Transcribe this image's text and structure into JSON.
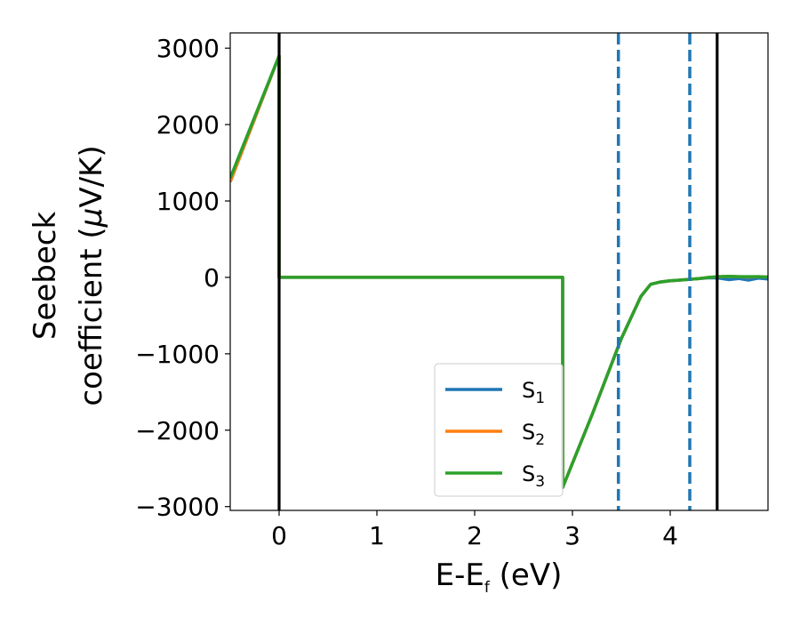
{
  "chart_data": {
    "type": "line",
    "xlabel": {
      "base": "E-E",
      "sub": "f",
      "tail": " (eV)"
    },
    "ylabel": {
      "line1": "Seebeck",
      "line2_text": "coefficient  (",
      "line2_mu": "μ",
      "line2_tail": "V/K)"
    },
    "xlim": [
      -0.5,
      5.0
    ],
    "ylim": [
      -3050,
      3200
    ],
    "xticks": [
      {
        "value": 0,
        "label": "0"
      },
      {
        "value": 1,
        "label": "1"
      },
      {
        "value": 2,
        "label": "2"
      },
      {
        "value": 3,
        "label": "3"
      },
      {
        "value": 4,
        "label": "4"
      }
    ],
    "yticks": [
      {
        "value": 3000,
        "label": "3000"
      },
      {
        "value": 2000,
        "label": "2000"
      },
      {
        "value": 1000,
        "label": "1000"
      },
      {
        "value": 0,
        "label": "0"
      },
      {
        "value": -1000,
        "label": "−1000"
      },
      {
        "value": -2000,
        "label": "−2000"
      },
      {
        "value": -3000,
        "label": "−3000"
      }
    ],
    "grid": false,
    "legend_position": "lower-center",
    "series": [
      {
        "name": "S",
        "sub": "1",
        "color": "#1f77b4",
        "x": [
          -0.5,
          0.0,
          0.0,
          2.9,
          2.9,
          3.2,
          3.5,
          3.7,
          3.8,
          3.9,
          4.0,
          4.1,
          4.2,
          4.3,
          4.4,
          4.5,
          4.6,
          4.7,
          4.8,
          4.9,
          5.0
        ],
        "y": [
          1250,
          2900,
          0,
          0,
          -2750,
          -1800,
          -800,
          -250,
          -90,
          -60,
          -45,
          -35,
          -25,
          -15,
          -5,
          -10,
          -30,
          -15,
          -35,
          -10,
          -20
        ]
      },
      {
        "name": "S",
        "sub": "2",
        "color": "#ff7f0e",
        "x": [
          -0.5,
          0.0,
          0.0,
          2.9,
          2.9,
          3.2,
          3.5,
          3.7,
          3.8,
          3.9,
          4.0,
          4.1,
          4.2,
          4.3,
          4.4,
          4.5,
          4.6,
          4.7,
          4.8,
          4.9,
          5.0
        ],
        "y": [
          1250,
          2900,
          0,
          0,
          -2750,
          -1800,
          -800,
          -250,
          -90,
          -60,
          -45,
          -35,
          -25,
          -15,
          0,
          10,
          15,
          10,
          5,
          10,
          5
        ]
      },
      {
        "name": "S",
        "sub": "3",
        "color": "#2ca02c",
        "x": [
          -0.5,
          0.0,
          0.0,
          2.9,
          2.9,
          3.2,
          3.5,
          3.7,
          3.8,
          3.9,
          4.0,
          4.1,
          4.2,
          4.3,
          4.4,
          4.5,
          4.6,
          4.7,
          4.8,
          4.9,
          5.0
        ],
        "y": [
          1300,
          2900,
          0,
          0,
          -2750,
          -1800,
          -800,
          -250,
          -90,
          -60,
          -45,
          -35,
          -25,
          -15,
          0,
          10,
          15,
          10,
          10,
          10,
          5
        ]
      }
    ],
    "vlines": [
      {
        "x": 0.0,
        "color": "#000000",
        "style": "solid"
      },
      {
        "x": 4.48,
        "color": "#000000",
        "style": "solid"
      },
      {
        "x": 3.47,
        "color": "#1f77b4",
        "style": "dashed"
      },
      {
        "x": 4.2,
        "color": "#1f77b4",
        "style": "dashed"
      }
    ]
  }
}
